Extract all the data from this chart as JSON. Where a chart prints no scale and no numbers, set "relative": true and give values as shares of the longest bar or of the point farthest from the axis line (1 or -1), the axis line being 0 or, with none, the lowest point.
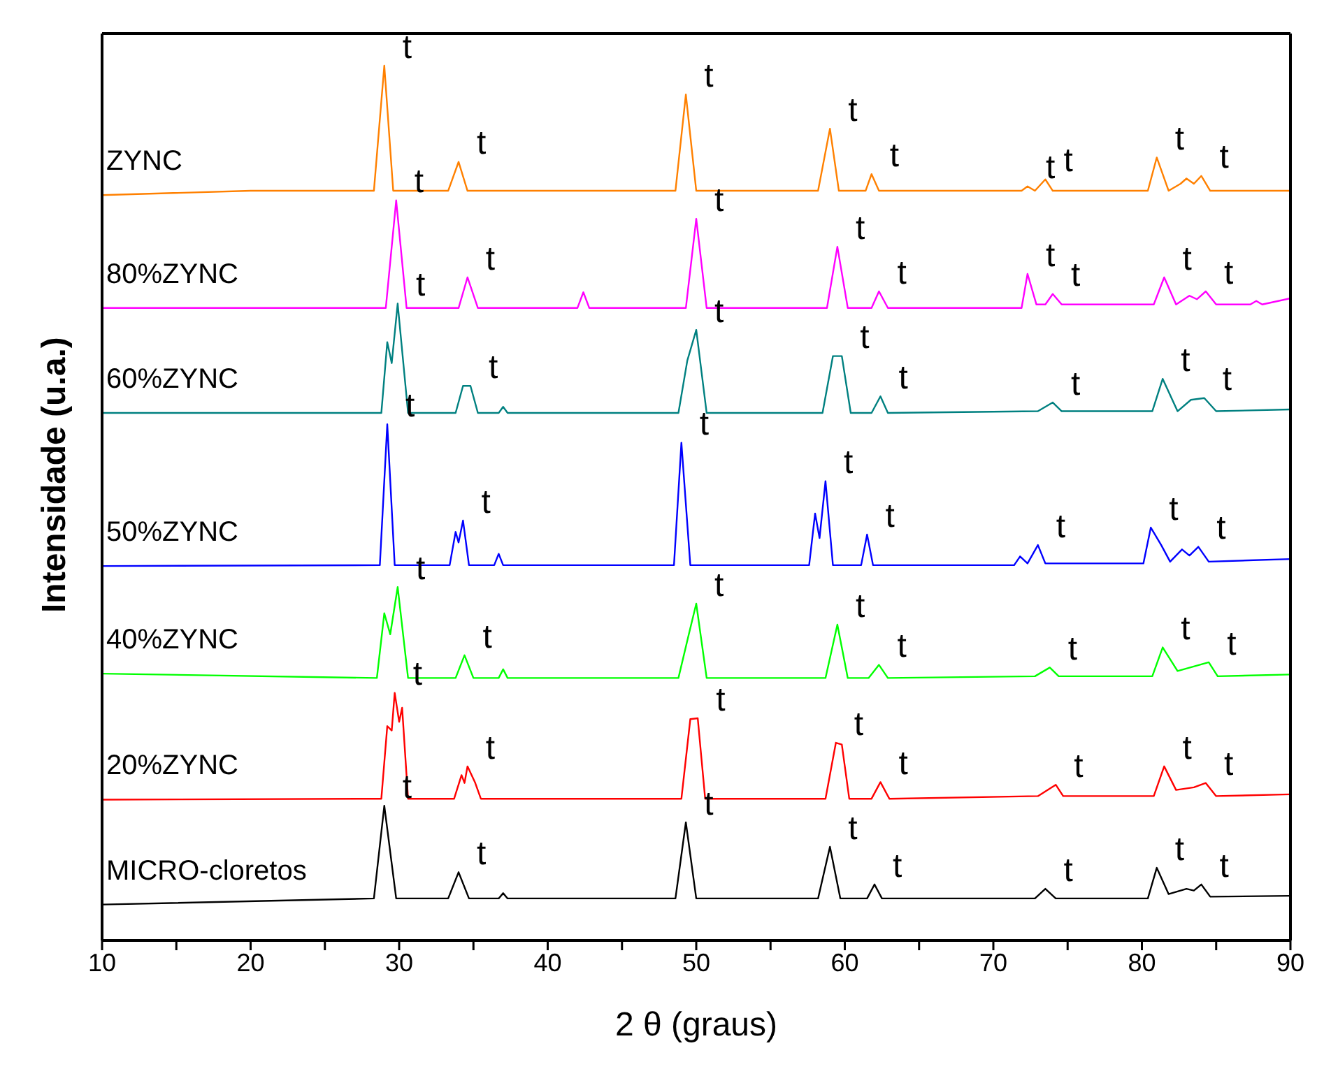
{
  "chart_data": {
    "type": "line",
    "relative": true,
    "xlabel": "2 θ (graus)",
    "ylabel": "Intensidade (u.a.)",
    "xlim": [
      10,
      90
    ],
    "xticks": [
      10,
      {
        "value": 15,
        "label": null
      },
      20,
      {
        "value": 25,
        "label": null
      },
      30,
      {
        "value": 35,
        "label": null
      },
      40,
      {
        "value": 45,
        "label": null
      },
      50,
      {
        "value": 55,
        "label": null
      },
      60,
      {
        "value": 65,
        "label": null
      },
      70,
      {
        "value": 75,
        "label": null
      },
      80,
      {
        "value": 85,
        "label": null
      },
      90
    ],
    "tick_labels": "x",
    "series": [
      {
        "name": "ZYNC",
        "color": "#ff8000",
        "x": [
          10,
          20,
          28.3,
          29.0,
          29.6,
          33.3,
          34.0,
          34.6,
          48.6,
          49.3,
          50.0,
          58.2,
          59.0,
          59.6,
          61.4,
          61.8,
          62.3,
          71.9,
          72.3,
          72.8,
          73.5,
          74.0,
          80.4,
          81.0,
          81.8,
          82.6,
          83.0,
          83.5,
          84.0,
          84.6,
          90
        ],
        "values": [
          0.852,
          0.857,
          0.857,
          1.0,
          0.857,
          0.857,
          0.89,
          0.857,
          0.857,
          0.967,
          0.857,
          0.857,
          0.928,
          0.857,
          0.857,
          0.876,
          0.857,
          0.857,
          0.862,
          0.857,
          0.87,
          0.857,
          0.857,
          0.895,
          0.857,
          0.865,
          0.871,
          0.865,
          0.874,
          0.857,
          0.857
        ]
      },
      {
        "name": "80%ZYNC",
        "color": "#ff00ff",
        "x": [
          10,
          29.1,
          29.8,
          30.5,
          34.0,
          34.6,
          35.3,
          42.0,
          42.4,
          42.8,
          49.3,
          50.0,
          50.7,
          58.8,
          59.5,
          60.2,
          61.8,
          62.3,
          62.9,
          71.9,
          72.3,
          72.9,
          73.5,
          74.0,
          74.6,
          80.8,
          81.5,
          82.3,
          83.2,
          83.7,
          84.3,
          85.0,
          87.3,
          87.7,
          88.1,
          90
        ],
        "values": [
          0.723,
          0.723,
          0.846,
          0.723,
          0.723,
          0.758,
          0.723,
          0.723,
          0.741,
          0.723,
          0.723,
          0.825,
          0.723,
          0.723,
          0.793,
          0.723,
          0.723,
          0.742,
          0.723,
          0.723,
          0.762,
          0.727,
          0.727,
          0.739,
          0.727,
          0.727,
          0.758,
          0.727,
          0.737,
          0.733,
          0.742,
          0.727,
          0.727,
          0.731,
          0.727,
          0.734
        ]
      },
      {
        "name": "60%ZYNC",
        "color": "#008080",
        "x": [
          10,
          28.8,
          29.2,
          29.5,
          29.9,
          30.6,
          33.8,
          34.3,
          34.8,
          35.3,
          36.7,
          37.0,
          37.3,
          48.8,
          49.4,
          50.0,
          50.7,
          58.5,
          59.2,
          59.8,
          60.4,
          61.8,
          62.4,
          62.9,
          73.0,
          74.0,
          74.6,
          80.7,
          81.4,
          82.4,
          83.3,
          84.2,
          85.0,
          90
        ],
        "values": [
          0.603,
          0.603,
          0.684,
          0.66,
          0.728,
          0.603,
          0.603,
          0.634,
          0.634,
          0.603,
          0.603,
          0.61,
          0.603,
          0.603,
          0.663,
          0.698,
          0.603,
          0.603,
          0.668,
          0.668,
          0.603,
          0.603,
          0.622,
          0.603,
          0.605,
          0.615,
          0.605,
          0.605,
          0.642,
          0.605,
          0.618,
          0.62,
          0.605,
          0.607
        ]
      },
      {
        "name": "50%ZYNC",
        "color": "#0000ff",
        "x": [
          10,
          28.7,
          29.2,
          29.7,
          33.4,
          33.8,
          34.0,
          34.3,
          34.7,
          36.4,
          36.7,
          37.0,
          48.5,
          49.0,
          49.6,
          57.6,
          58.0,
          58.3,
          58.7,
          59.2,
          61.1,
          61.5,
          61.9,
          71.4,
          71.8,
          72.3,
          73.0,
          73.5,
          80.1,
          80.6,
          81.3,
          81.9,
          82.7,
          83.2,
          83.8,
          84.5,
          90
        ],
        "values": [
          0.428,
          0.429,
          0.59,
          0.429,
          0.429,
          0.467,
          0.455,
          0.48,
          0.429,
          0.429,
          0.442,
          0.429,
          0.429,
          0.569,
          0.429,
          0.429,
          0.488,
          0.46,
          0.525,
          0.429,
          0.429,
          0.464,
          0.429,
          0.429,
          0.439,
          0.431,
          0.452,
          0.431,
          0.431,
          0.472,
          0.452,
          0.433,
          0.447,
          0.44,
          0.45,
          0.433,
          0.436
        ]
      },
      {
        "name": "40%ZYNC",
        "color": "#00ff00",
        "x": [
          10,
          28.5,
          29.0,
          29.4,
          29.9,
          30.6,
          33.8,
          34.4,
          35.0,
          36.7,
          37.0,
          37.3,
          48.8,
          49.5,
          50.0,
          50.7,
          58.7,
          59.5,
          60.2,
          61.6,
          62.3,
          62.9,
          72.8,
          73.8,
          74.4,
          80.7,
          81.4,
          82.4,
          84.5,
          85.1,
          90
        ],
        "values": [
          0.305,
          0.3,
          0.374,
          0.35,
          0.404,
          0.3,
          0.3,
          0.326,
          0.3,
          0.3,
          0.31,
          0.3,
          0.3,
          0.35,
          0.385,
          0.3,
          0.3,
          0.361,
          0.3,
          0.3,
          0.315,
          0.3,
          0.302,
          0.312,
          0.302,
          0.302,
          0.335,
          0.308,
          0.318,
          0.302,
          0.304
        ]
      },
      {
        "name": "20%ZYNC",
        "color": "#ff0000",
        "x": [
          10,
          28.8,
          29.2,
          29.5,
          29.7,
          30.0,
          30.2,
          30.6,
          33.7,
          34.2,
          34.4,
          34.6,
          35.1,
          35.5,
          49.0,
          49.6,
          50.1,
          50.6,
          58.7,
          59.4,
          59.8,
          60.3,
          61.8,
          62.4,
          63.0,
          73.0,
          74.2,
          74.7,
          80.8,
          81.5,
          82.3,
          83.5,
          84.3,
          85.0,
          90
        ],
        "values": [
          0.161,
          0.162,
          0.245,
          0.24,
          0.283,
          0.25,
          0.266,
          0.162,
          0.162,
          0.189,
          0.18,
          0.199,
          0.181,
          0.162,
          0.162,
          0.253,
          0.254,
          0.162,
          0.162,
          0.226,
          0.224,
          0.162,
          0.162,
          0.181,
          0.162,
          0.165,
          0.178,
          0.165,
          0.165,
          0.199,
          0.172,
          0.175,
          0.18,
          0.165,
          0.167
        ]
      },
      {
        "name": "MICRO-cloretos",
        "color": "#000000",
        "x": [
          10,
          28.3,
          29.0,
          29.8,
          33.3,
          34.0,
          34.7,
          36.7,
          37.0,
          37.3,
          48.6,
          49.3,
          50.0,
          58.2,
          59.0,
          59.7,
          61.5,
          62.0,
          62.5,
          72.8,
          73.5,
          74.2,
          80.4,
          81.0,
          81.8,
          82.6,
          83.0,
          83.5,
          84.0,
          84.6,
          90
        ],
        "values": [
          0.041,
          0.048,
          0.154,
          0.048,
          0.048,
          0.078,
          0.048,
          0.048,
          0.054,
          0.048,
          0.048,
          0.135,
          0.048,
          0.048,
          0.107,
          0.048,
          0.048,
          0.064,
          0.048,
          0.048,
          0.059,
          0.048,
          0.048,
          0.083,
          0.053,
          0.057,
          0.059,
          0.057,
          0.064,
          0.05,
          0.051
        ]
      }
    ],
    "annotations": [
      {
        "text": "t",
        "x": 29.0,
        "y": 1.0
      },
      {
        "text": "t",
        "x": 34.0,
        "y": 0.89
      },
      {
        "text": "t",
        "x": 49.3,
        "y": 0.967
      },
      {
        "text": "t",
        "x": 59.0,
        "y": 0.928
      },
      {
        "text": "t",
        "x": 61.8,
        "y": 0.876
      },
      {
        "text": "t",
        "x": 72.3,
        "y": 0.862
      },
      {
        "text": "t",
        "x": 73.5,
        "y": 0.87
      },
      {
        "text": "t",
        "x": 81.0,
        "y": 0.895
      },
      {
        "text": "t",
        "x": 84.0,
        "y": 0.874
      },
      {
        "text": "t",
        "x": 29.8,
        "y": 0.846
      },
      {
        "text": "t",
        "x": 34.6,
        "y": 0.758
      },
      {
        "text": "t",
        "x": 50.0,
        "y": 0.825
      },
      {
        "text": "t",
        "x": 59.5,
        "y": 0.793
      },
      {
        "text": "t",
        "x": 62.3,
        "y": 0.742
      },
      {
        "text": "t",
        "x": 72.3,
        "y": 0.762
      },
      {
        "text": "t",
        "x": 74.0,
        "y": 0.739
      },
      {
        "text": "t",
        "x": 81.5,
        "y": 0.758
      },
      {
        "text": "t",
        "x": 84.3,
        "y": 0.742
      },
      {
        "text": "t",
        "x": 29.9,
        "y": 0.728
      },
      {
        "text": "t",
        "x": 34.8,
        "y": 0.634
      },
      {
        "text": "t",
        "x": 50.0,
        "y": 0.698
      },
      {
        "text": "t",
        "x": 59.8,
        "y": 0.668
      },
      {
        "text": "t",
        "x": 62.4,
        "y": 0.622
      },
      {
        "text": "t",
        "x": 74.0,
        "y": 0.615
      },
      {
        "text": "t",
        "x": 81.4,
        "y": 0.642
      },
      {
        "text": "t",
        "x": 84.2,
        "y": 0.62
      },
      {
        "text": "t",
        "x": 29.2,
        "y": 0.59
      },
      {
        "text": "t",
        "x": 34.3,
        "y": 0.48
      },
      {
        "text": "t",
        "x": 49.0,
        "y": 0.569
      },
      {
        "text": "t",
        "x": 58.7,
        "y": 0.525
      },
      {
        "text": "t",
        "x": 61.5,
        "y": 0.464
      },
      {
        "text": "t",
        "x": 73.0,
        "y": 0.452
      },
      {
        "text": "t",
        "x": 80.6,
        "y": 0.472
      },
      {
        "text": "t",
        "x": 83.8,
        "y": 0.45
      },
      {
        "text": "t",
        "x": 29.9,
        "y": 0.404
      },
      {
        "text": "t",
        "x": 34.4,
        "y": 0.326
      },
      {
        "text": "t",
        "x": 50.0,
        "y": 0.385
      },
      {
        "text": "t",
        "x": 59.5,
        "y": 0.361
      },
      {
        "text": "t",
        "x": 62.3,
        "y": 0.315
      },
      {
        "text": "t",
        "x": 73.8,
        "y": 0.312
      },
      {
        "text": "t",
        "x": 81.4,
        "y": 0.335
      },
      {
        "text": "t",
        "x": 84.5,
        "y": 0.318
      },
      {
        "text": "t",
        "x": 29.7,
        "y": 0.283
      },
      {
        "text": "t",
        "x": 34.6,
        "y": 0.199
      },
      {
        "text": "t",
        "x": 50.1,
        "y": 0.254
      },
      {
        "text": "t",
        "x": 59.4,
        "y": 0.226
      },
      {
        "text": "t",
        "x": 62.4,
        "y": 0.181
      },
      {
        "text": "t",
        "x": 74.2,
        "y": 0.178
      },
      {
        "text": "t",
        "x": 81.5,
        "y": 0.199
      },
      {
        "text": "t",
        "x": 84.3,
        "y": 0.18
      },
      {
        "text": "t",
        "x": 29.0,
        "y": 0.154
      },
      {
        "text": "t",
        "x": 34.0,
        "y": 0.078
      },
      {
        "text": "t",
        "x": 49.3,
        "y": 0.135
      },
      {
        "text": "t",
        "x": 59.0,
        "y": 0.107
      },
      {
        "text": "t",
        "x": 62.0,
        "y": 0.064
      },
      {
        "text": "t",
        "x": 73.5,
        "y": 0.059
      },
      {
        "text": "t",
        "x": 81.0,
        "y": 0.083
      },
      {
        "text": "t",
        "x": 84.0,
        "y": 0.064
      }
    ]
  }
}
